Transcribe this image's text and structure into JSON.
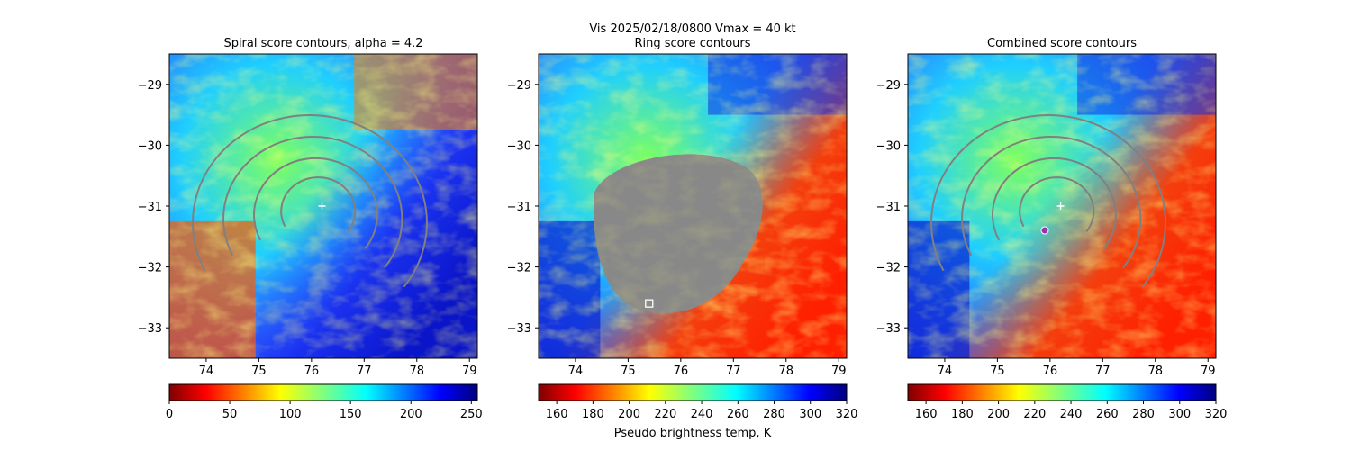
{
  "figure": {
    "suptitle_line1": "Vis  2025/02/18/0800    Vmax = 40 kt"
  },
  "chart_data": [
    {
      "type": "heatmap",
      "title": "Spiral score contours, alpha =  4.2",
      "xlim": [
        73.3,
        79.15
      ],
      "ylim": [
        -33.5,
        -28.5
      ],
      "xticks": [
        74,
        75,
        76,
        77,
        78,
        79
      ],
      "xtick_labels": [
        "74",
        "75",
        "76",
        "77",
        "78",
        "79"
      ],
      "yticks": [
        -29,
        -30,
        -31,
        -32,
        -33
      ],
      "ytick_labels": [
        "−29",
        "−30",
        "−31",
        "−32",
        "−33"
      ],
      "colorbar": {
        "colormap": "jet_r",
        "range": [
          0,
          255
        ],
        "ticks": [
          0,
          50,
          100,
          150,
          200,
          250
        ],
        "tick_labels": [
          "0",
          "50",
          "100",
          "150",
          "200",
          "250"
        ],
        "label": ""
      },
      "markers": [
        {
          "kind": "plus",
          "color": "#ffffff",
          "x": 76.2,
          "y": -31.0
        }
      ],
      "contour_color": "#808080"
    },
    {
      "type": "heatmap",
      "title": "Ring score contours",
      "xlim": [
        73.3,
        79.15
      ],
      "ylim": [
        -33.5,
        -28.5
      ],
      "xticks": [
        74,
        75,
        76,
        77,
        78,
        79
      ],
      "xtick_labels": [
        "74",
        "75",
        "76",
        "77",
        "78",
        "79"
      ],
      "yticks": [
        -29,
        -30,
        -31,
        -32,
        -33
      ],
      "ytick_labels": [
        "−29",
        "−30",
        "−31",
        "−32",
        "−33"
      ],
      "colorbar": {
        "colormap": "jet_r",
        "range": [
          150,
          320
        ],
        "ticks": [
          160,
          180,
          200,
          220,
          240,
          260,
          280,
          300,
          320
        ],
        "tick_labels": [
          "160",
          "180",
          "200",
          "220",
          "240",
          "260",
          "280",
          "300",
          "320"
        ],
        "label": "Pseudo brightness temp, K"
      },
      "markers": [
        {
          "kind": "square",
          "color": "#ffffff",
          "x": 75.4,
          "y": -32.6
        }
      ],
      "contour_color": "#808080"
    },
    {
      "type": "heatmap",
      "title": "Combined score contours",
      "xlim": [
        73.3,
        79.15
      ],
      "ylim": [
        -33.5,
        -28.5
      ],
      "xticks": [
        74,
        75,
        76,
        77,
        78,
        79
      ],
      "xtick_labels": [
        "74",
        "75",
        "76",
        "77",
        "78",
        "79"
      ],
      "yticks": [
        -29,
        -30,
        -31,
        -32,
        -33
      ],
      "ytick_labels": [
        "−29",
        "−30",
        "−31",
        "−32",
        "−33"
      ],
      "colorbar": {
        "colormap": "jet_r",
        "range": [
          150,
          320
        ],
        "ticks": [
          160,
          180,
          200,
          220,
          240,
          260,
          280,
          300,
          320
        ],
        "tick_labels": [
          "160",
          "180",
          "200",
          "220",
          "240",
          "260",
          "280",
          "300",
          "320"
        ],
        "label": ""
      },
      "markers": [
        {
          "kind": "plus",
          "color": "#ffffff",
          "x": 76.2,
          "y": -31.0
        },
        {
          "kind": "circle",
          "color": "#9b30b0",
          "x": 75.9,
          "y": -31.4
        }
      ],
      "contour_color": "#808080"
    }
  ]
}
